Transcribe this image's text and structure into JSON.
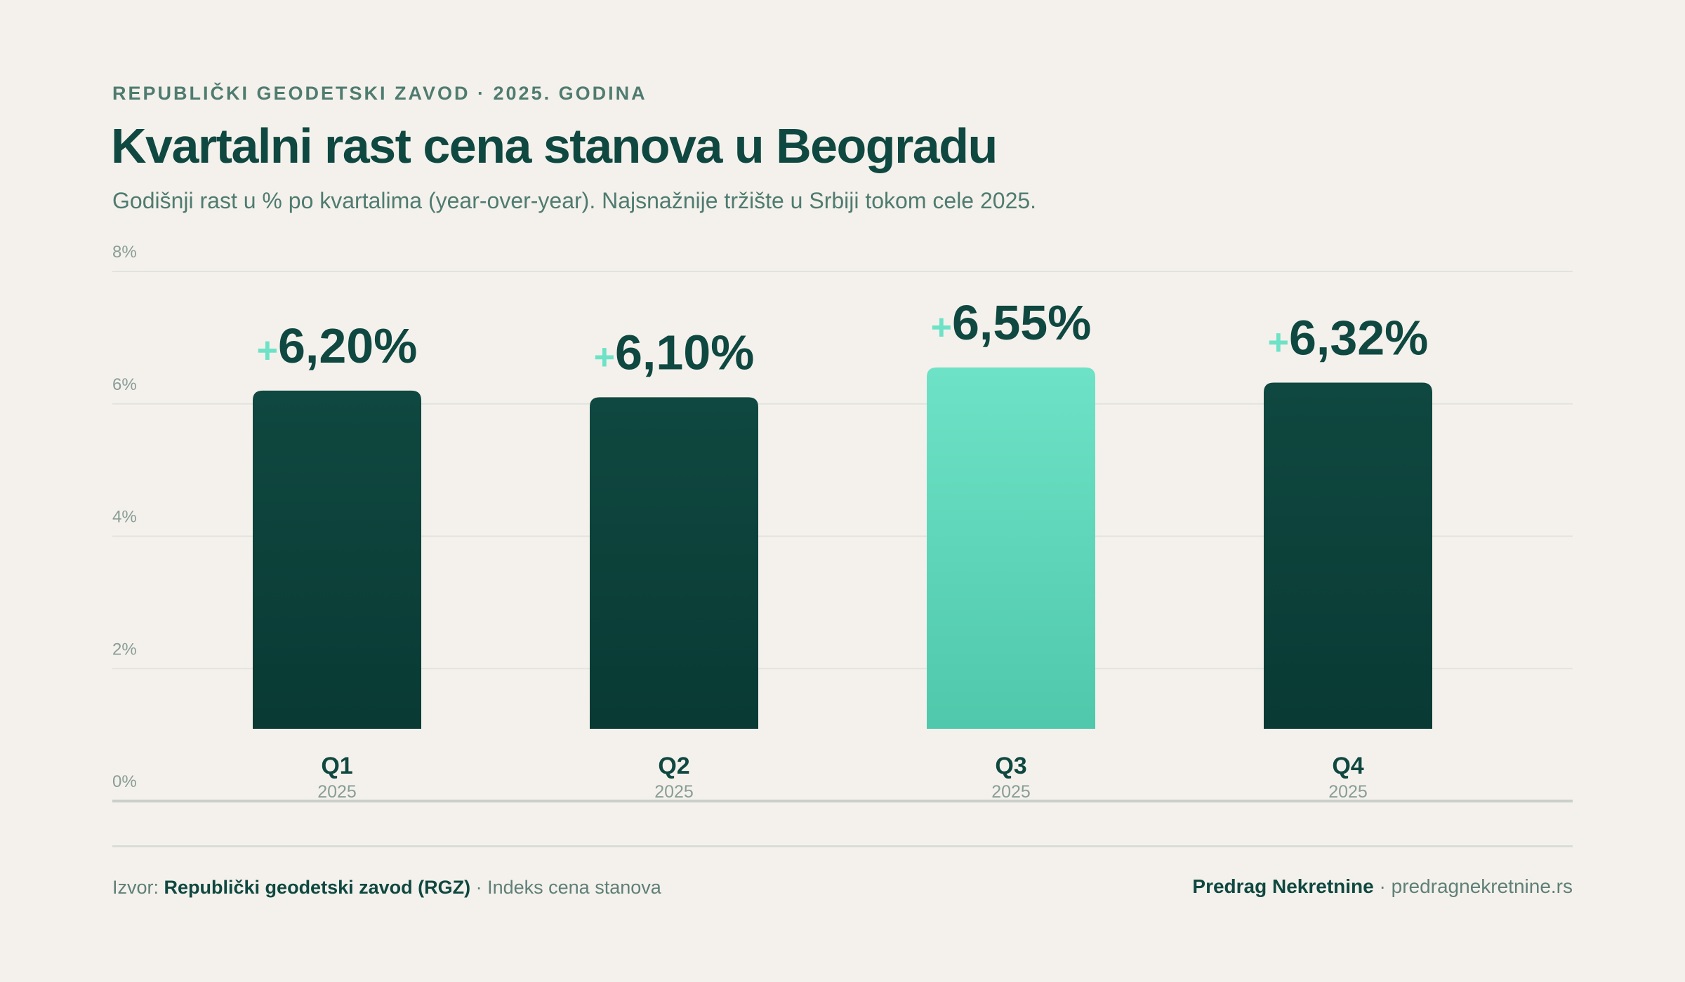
{
  "header": {
    "eyebrow": "REPUBLIČKI GEODETSKI ZAVOD · 2025. GODINA",
    "title": "Kvartalni rast cena stanova u Beogradu",
    "subtitle": "Godišnji rast u % po kvartalima (year-over-year). Najsnažnije tržište u Srbiji tokom cele 2025."
  },
  "colors": {
    "background": "#f4f1ec",
    "bar_dark": "#0f4840",
    "bar_dark_bottom": "#093a34",
    "bar_highlight": "#6ee2c6",
    "bar_highlight_bottom": "#4fc8ab",
    "plus_sign": "#6ee2c6",
    "label_text": "#0f4840",
    "tick_text": "#8a9d97",
    "grid": "#e3e3de",
    "axis": "#c9d0cb"
  },
  "chart_data": {
    "type": "bar",
    "categories": [
      "Q1",
      "Q2",
      "Q3",
      "Q4"
    ],
    "sublabels": [
      "2025",
      "2025",
      "2025",
      "2025"
    ],
    "values": [
      6.2,
      6.1,
      6.55,
      6.32
    ],
    "value_labels": [
      "6,20%",
      "6,10%",
      "6,55%",
      "6,32%"
    ],
    "value_prefix": "+",
    "highlight_index": 2,
    "ylim": [
      0,
      8
    ],
    "yticks": [
      0,
      2,
      4,
      6,
      8
    ],
    "ytick_labels": [
      "0%",
      "2%",
      "4%",
      "6%",
      "8%"
    ],
    "grid": true,
    "title": "Kvartalni rast cena stanova u Beogradu",
    "xlabel": "",
    "ylabel": ""
  },
  "footer": {
    "source_prefix": "Izvor:",
    "source_name": "Republički geodetski zavod (RGZ)",
    "source_suffix": "· Indeks cena stanova",
    "brand": "Predrag Nekretnine",
    "website": "· predragnekretnine.rs"
  }
}
